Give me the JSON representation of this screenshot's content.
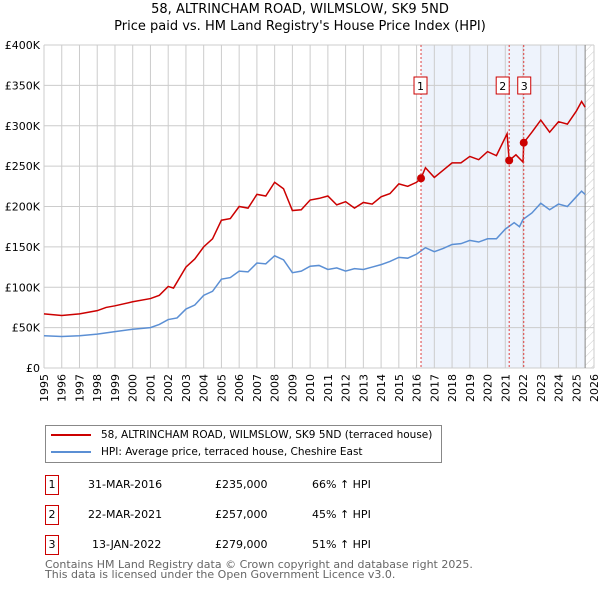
{
  "title": "58, ALTRINCHAM ROAD, WILMSLOW, SK9 5ND",
  "subtitle": "Price paid vs. HM Land Registry's House Price Index (HPI)",
  "colors": {
    "property": "#cc0000",
    "hpi": "#5b8fd4",
    "shade": "#eef3fc"
  },
  "chart_data": {
    "type": "line",
    "title": "58, ALTRINCHAM ROAD, WILMSLOW, SK9 5ND",
    "ylabel": "",
    "xlabel": "",
    "xlim": [
      1995,
      2026
    ],
    "ylim": [
      0,
      400000
    ],
    "yticks": [
      "£0",
      "£50K",
      "£100K",
      "£150K",
      "£200K",
      "£250K",
      "£300K",
      "£350K",
      "£400K"
    ],
    "xticks": [
      "1995",
      "1996",
      "1997",
      "1998",
      "1999",
      "2000",
      "2001",
      "2002",
      "2003",
      "2004",
      "2005",
      "2006",
      "2007",
      "2008",
      "2009",
      "2010",
      "2011",
      "2012",
      "2013",
      "2014",
      "2015",
      "2016",
      "2017",
      "2018",
      "2019",
      "2020",
      "2021",
      "2022",
      "2023",
      "2024",
      "2025",
      "2026"
    ],
    "grid": true,
    "series": [
      {
        "name": "58, ALTRINCHAM ROAD, WILMSLOW, SK9 5ND (terraced house)",
        "x": [
          1995,
          1996,
          1997,
          1998,
          1998.5,
          1999,
          2000,
          2001,
          2001.5,
          2002,
          2002.3,
          2003,
          2003.5,
          2004,
          2004.5,
          2005,
          2005.5,
          2006,
          2006.5,
          2007,
          2007.5,
          2008,
          2008.5,
          2009,
          2009.5,
          2010,
          2010.5,
          2011,
          2011.5,
          2012,
          2012.5,
          2013,
          2013.5,
          2014,
          2014.5,
          2015,
          2015.5,
          2016,
          2016.25,
          2016.5,
          2017,
          2017.5,
          2018,
          2018.5,
          2019,
          2019.5,
          2020,
          2020.5,
          2021.1,
          2021.22,
          2021.6,
          2022,
          2022.04,
          2022.5,
          2023,
          2023.5,
          2024,
          2024.5,
          2025,
          2025.3,
          2025.5
        ],
        "y": [
          67000,
          65000,
          67000,
          71000,
          75000,
          77000,
          82000,
          86000,
          90000,
          101000,
          99000,
          125000,
          135000,
          150000,
          160000,
          183000,
          185000,
          200000,
          198000,
          215000,
          213000,
          230000,
          222000,
          195000,
          196000,
          208000,
          210000,
          213000,
          202000,
          206000,
          198000,
          205000,
          203000,
          212000,
          216000,
          228000,
          225000,
          230000,
          235000,
          248000,
          236000,
          245000,
          254000,
          254000,
          262000,
          258000,
          268000,
          263000,
          290000,
          257000,
          264000,
          255000,
          279000,
          292000,
          307000,
          292000,
          305000,
          302000,
          318000,
          330000,
          323000
        ]
      },
      {
        "name": "HPI: Average price, terraced house, Cheshire East",
        "x": [
          1995,
          1996,
          1997,
          1998,
          1999,
          2000,
          2001,
          2001.5,
          2002,
          2002.5,
          2003,
          2003.5,
          2004,
          2004.5,
          2005,
          2005.5,
          2006,
          2006.5,
          2007,
          2007.5,
          2008,
          2008.5,
          2009,
          2009.5,
          2010,
          2010.5,
          2011,
          2011.5,
          2012,
          2012.5,
          2013,
          2013.5,
          2014,
          2014.5,
          2015,
          2015.5,
          2016,
          2016.5,
          2017,
          2017.5,
          2018,
          2018.5,
          2019,
          2019.5,
          2020,
          2020.5,
          2021,
          2021.5,
          2021.8,
          2022,
          2022.5,
          2023,
          2023.5,
          2024,
          2024.5,
          2025,
          2025.3,
          2025.5
        ],
        "y": [
          40000,
          39000,
          40000,
          42000,
          45000,
          48000,
          50000,
          54000,
          60000,
          62000,
          73000,
          78000,
          90000,
          95000,
          110000,
          112000,
          120000,
          119000,
          130000,
          129000,
          139000,
          134000,
          118000,
          120000,
          126000,
          127000,
          122000,
          124000,
          120000,
          123000,
          122000,
          125000,
          128000,
          132000,
          137000,
          136000,
          141000,
          149000,
          144000,
          148000,
          153000,
          154000,
          158000,
          156000,
          160000,
          160000,
          172000,
          180000,
          175000,
          184000,
          192000,
          204000,
          196000,
          203000,
          200000,
          212000,
          219000,
          215000
        ]
      }
    ],
    "sales": [
      {
        "label": "1",
        "x": 2016.25,
        "y": 235000,
        "date": "31-MAR-2016",
        "price": "£235,000",
        "hpi": "66% ↑ HPI"
      },
      {
        "label": "2",
        "x": 2021.22,
        "y": 257000,
        "date": "22-MAR-2021",
        "price": "£257,000",
        "hpi": "45% ↑ HPI"
      },
      {
        "label": "3",
        "x": 2022.04,
        "y": 279000,
        "date": "13-JAN-2022",
        "price": "£279,000",
        "hpi": "51% ↑ HPI"
      }
    ],
    "shade_from": 2016.25,
    "forecast_from": 2025.5
  },
  "legend": {
    "property": "58, ALTRINCHAM ROAD, WILMSLOW, SK9 5ND (terraced house)",
    "hpi": "HPI: Average price, terraced house, Cheshire East"
  },
  "footer": {
    "line1": "Contains HM Land Registry data © Crown copyright and database right 2025.",
    "line2": "This data is licensed under the Open Government Licence v3.0."
  }
}
